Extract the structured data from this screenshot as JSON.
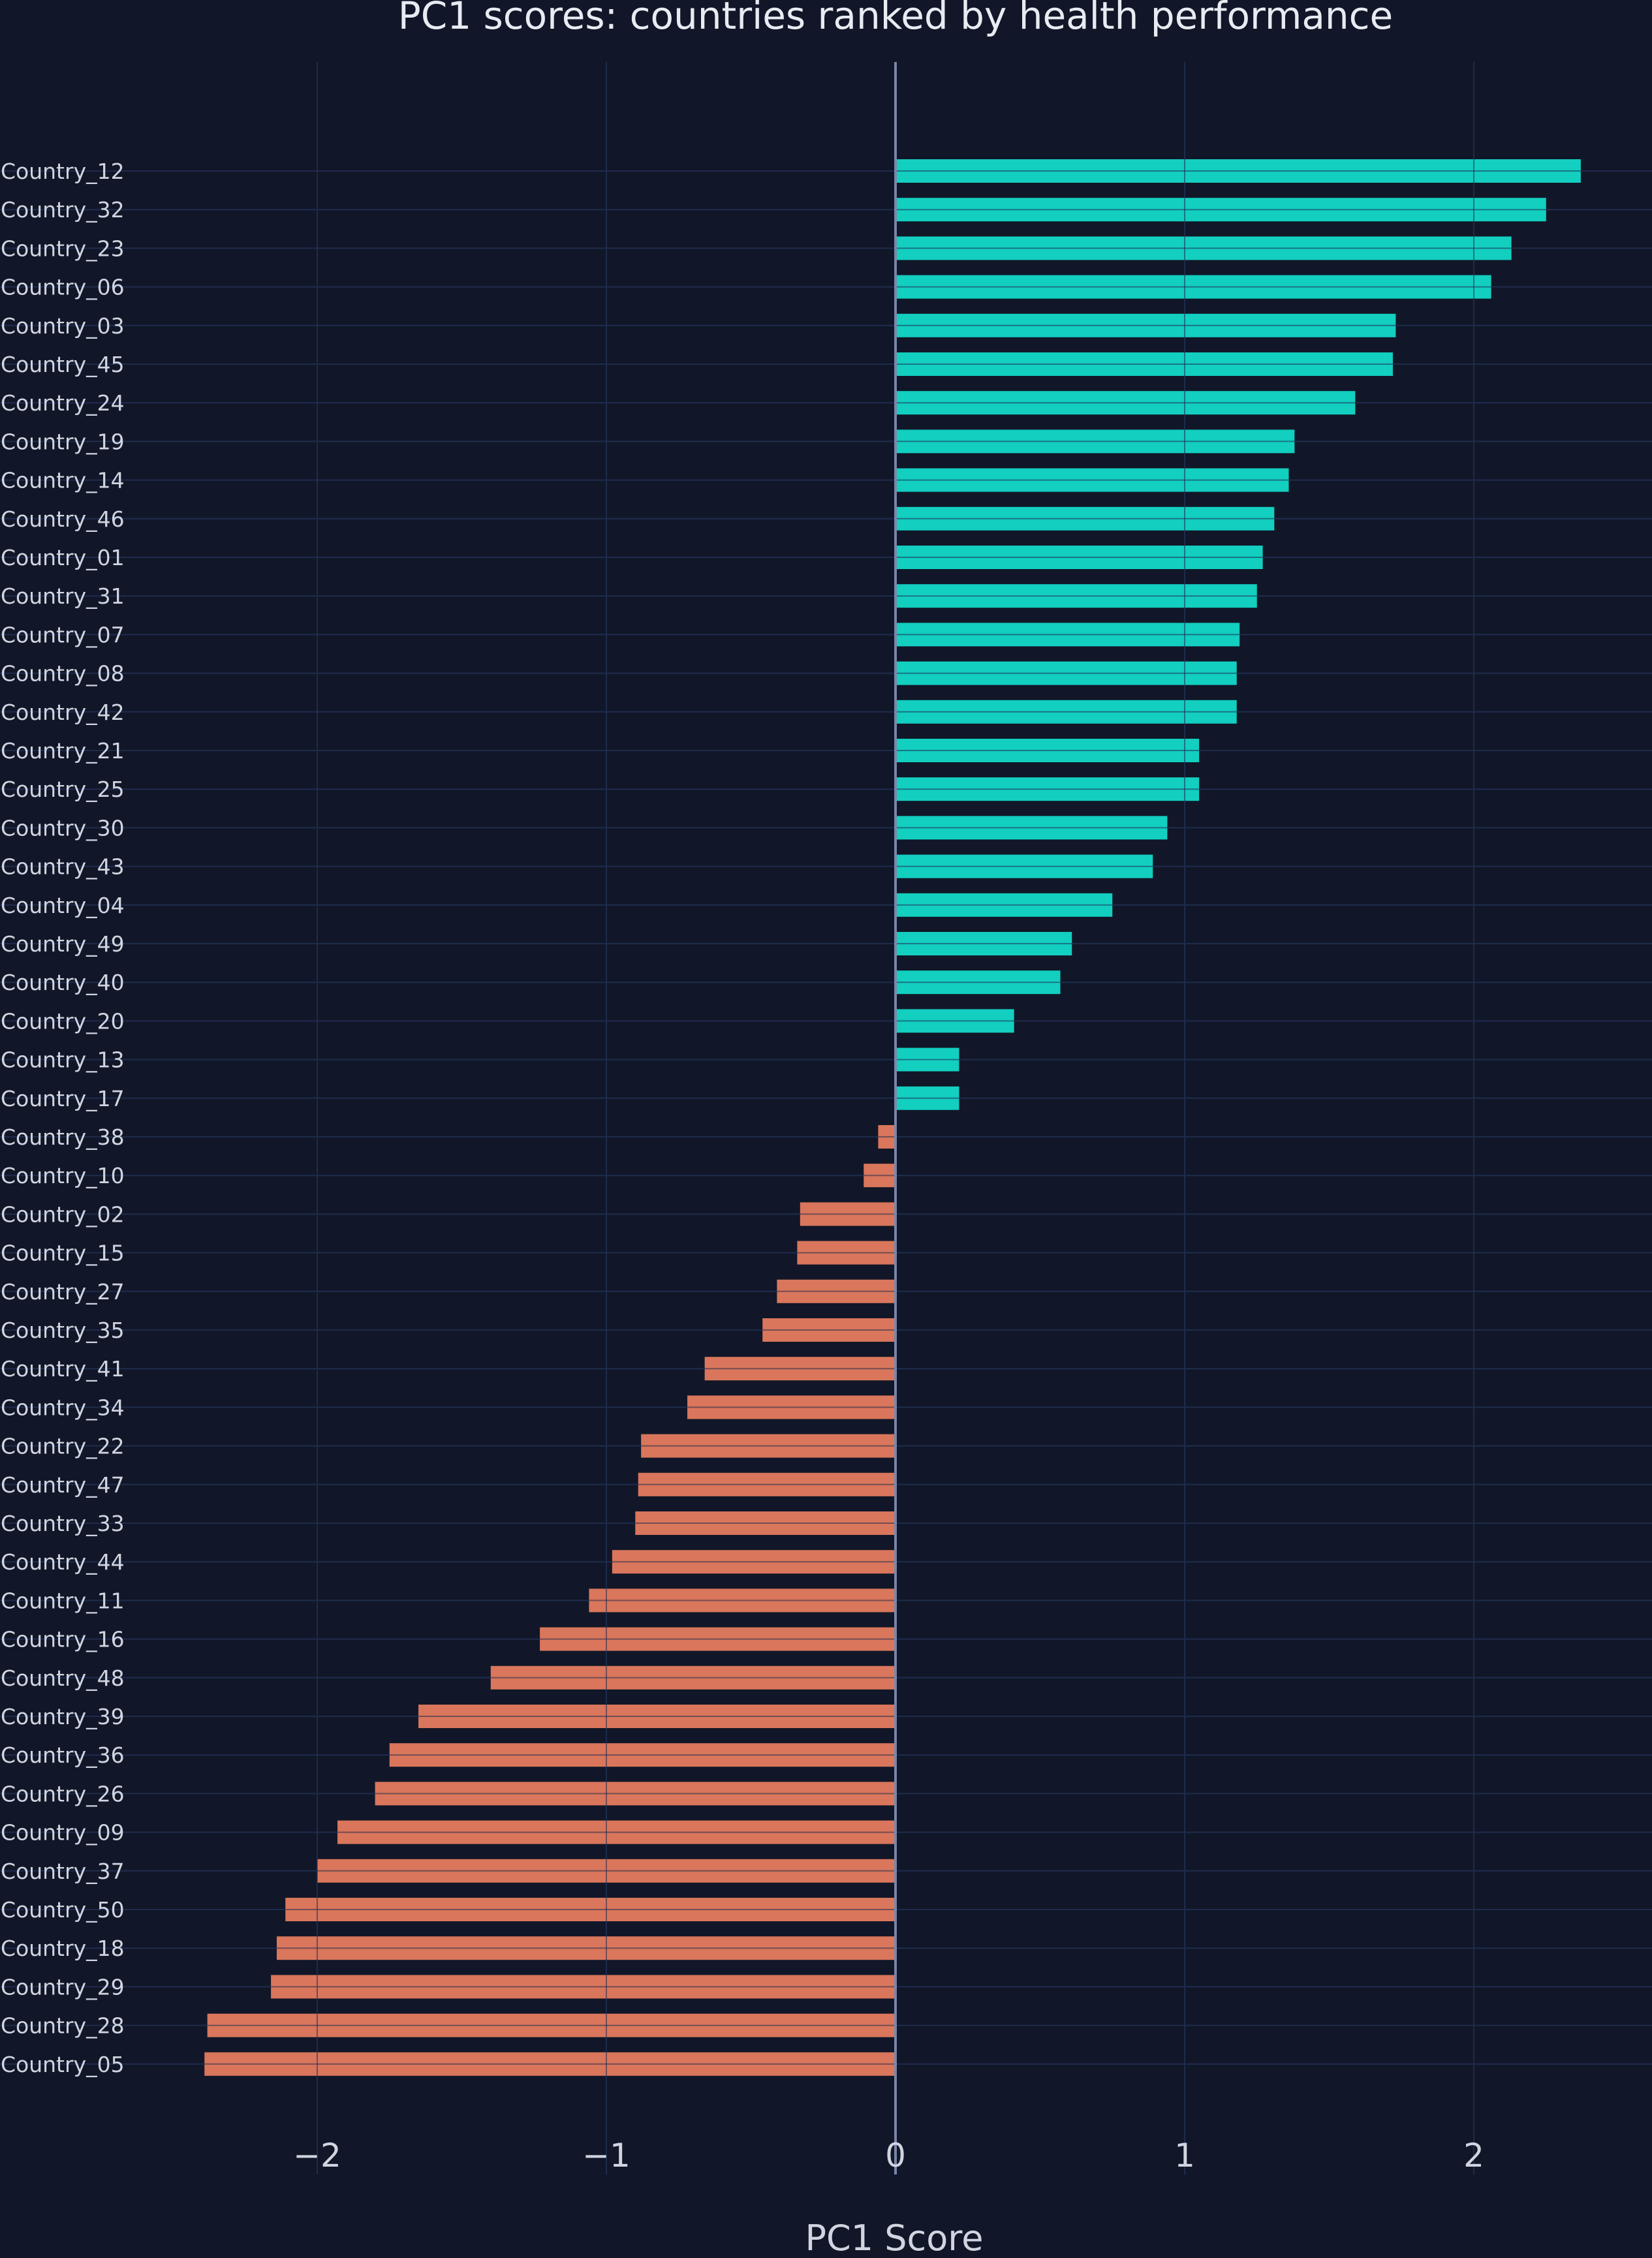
{
  "chart_data": {
    "type": "bar",
    "orientation": "horizontal",
    "title": "PC1 scores: countries ranked by health performance",
    "xlabel": "PC1 Score",
    "ylabel": "",
    "xlim": [
      -2.5,
      2.5
    ],
    "xticks": [
      -2,
      -1,
      0,
      1,
      2
    ],
    "xtick_labels": [
      "−2",
      "−1",
      "0",
      "1",
      "2"
    ],
    "grid": true,
    "colors": {
      "background": "#111728",
      "grid": "#1f2b4d",
      "zero_line": "#7a86a8",
      "positive": "#12cfc0",
      "negative": "#d9765c",
      "text": "#d0d5e0"
    },
    "categories": [
      "Country_12",
      "Country_32",
      "Country_23",
      "Country_06",
      "Country_03",
      "Country_45",
      "Country_24",
      "Country_19",
      "Country_14",
      "Country_46",
      "Country_01",
      "Country_31",
      "Country_07",
      "Country_08",
      "Country_42",
      "Country_21",
      "Country_25",
      "Country_30",
      "Country_43",
      "Country_04",
      "Country_49",
      "Country_40",
      "Country_20",
      "Country_13",
      "Country_17",
      "Country_38",
      "Country_10",
      "Country_02",
      "Country_15",
      "Country_27",
      "Country_35",
      "Country_41",
      "Country_34",
      "Country_22",
      "Country_47",
      "Country_33",
      "Country_44",
      "Country_11",
      "Country_16",
      "Country_48",
      "Country_39",
      "Country_36",
      "Country_26",
      "Country_09",
      "Country_37",
      "Country_50",
      "Country_18",
      "Country_29",
      "Country_28",
      "Country_05"
    ],
    "values": [
      2.37,
      2.25,
      2.13,
      2.06,
      1.73,
      1.72,
      1.59,
      1.38,
      1.36,
      1.31,
      1.27,
      1.25,
      1.19,
      1.18,
      1.18,
      1.05,
      1.05,
      0.94,
      0.89,
      0.75,
      0.61,
      0.57,
      0.41,
      0.22,
      0.22,
      -0.06,
      -0.11,
      -0.33,
      -0.34,
      -0.41,
      -0.46,
      -0.66,
      -0.72,
      -0.88,
      -0.89,
      -0.9,
      -0.98,
      -1.06,
      -1.23,
      -1.4,
      -1.65,
      -1.75,
      -1.8,
      -1.93,
      -2.0,
      -2.11,
      -2.14,
      -2.16,
      -2.38,
      -2.39
    ]
  }
}
